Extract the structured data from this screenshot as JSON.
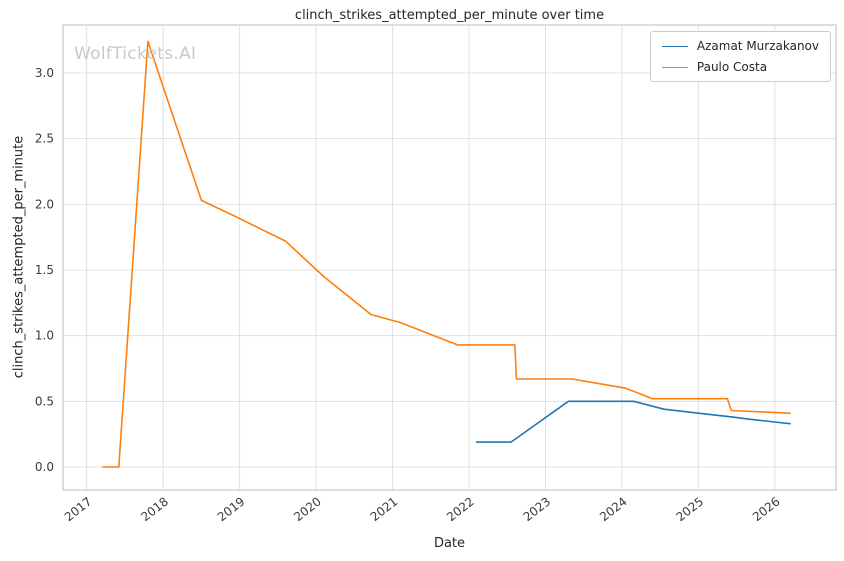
{
  "watermark": "WolfTickets.AI",
  "chart_data": {
    "type": "line",
    "title": "clinch_strikes_attempted_per_minute over time",
    "xlabel": "Date",
    "ylabel": "clinch_strikes_attempted_per_minute",
    "xlim": [
      2016.69,
      2026.8
    ],
    "ylim": [
      -0.175,
      3.365
    ],
    "grid": true,
    "legend_position": "upper right",
    "x_ticks": [
      2017,
      2018,
      2019,
      2020,
      2021,
      2022,
      2023,
      2024,
      2025,
      2026
    ],
    "x_tick_labels": [
      "2017",
      "2018",
      "2019",
      "2020",
      "2021",
      "2022",
      "2023",
      "2024",
      "2025",
      "2026"
    ],
    "y_ticks": [
      0.0,
      0.5,
      1.0,
      1.5,
      2.0,
      2.5,
      3.0
    ],
    "y_tick_labels": [
      "0.0",
      "0.5",
      "1.0",
      "1.5",
      "2.0",
      "2.5",
      "3.0"
    ],
    "series": [
      {
        "name": "Azamat Murzakanov",
        "color": "#1f77b4",
        "points": [
          [
            2022.1,
            0.19
          ],
          [
            2022.55,
            0.19
          ],
          [
            2023.3,
            0.5
          ],
          [
            2024.15,
            0.5
          ],
          [
            2024.55,
            0.44
          ],
          [
            2025.0,
            0.41
          ],
          [
            2025.45,
            0.38
          ],
          [
            2025.65,
            0.365
          ],
          [
            2026.2,
            0.33
          ]
        ]
      },
      {
        "name": "Paulo Costa",
        "color": "#ff7f0e",
        "points": [
          [
            2017.21,
            0.0
          ],
          [
            2017.42,
            0.0
          ],
          [
            2017.8,
            3.24
          ],
          [
            2018.5,
            2.03
          ],
          [
            2018.97,
            1.9
          ],
          [
            2019.6,
            1.72
          ],
          [
            2020.1,
            1.45
          ],
          [
            2020.72,
            1.16
          ],
          [
            2021.1,
            1.1
          ],
          [
            2021.85,
            0.93
          ],
          [
            2022.6,
            0.93
          ],
          [
            2022.62,
            0.67
          ],
          [
            2023.35,
            0.67
          ],
          [
            2024.05,
            0.6
          ],
          [
            2024.4,
            0.52
          ],
          [
            2025.38,
            0.52
          ],
          [
            2025.43,
            0.43
          ],
          [
            2025.8,
            0.42
          ],
          [
            2026.2,
            0.41
          ]
        ]
      }
    ]
  }
}
